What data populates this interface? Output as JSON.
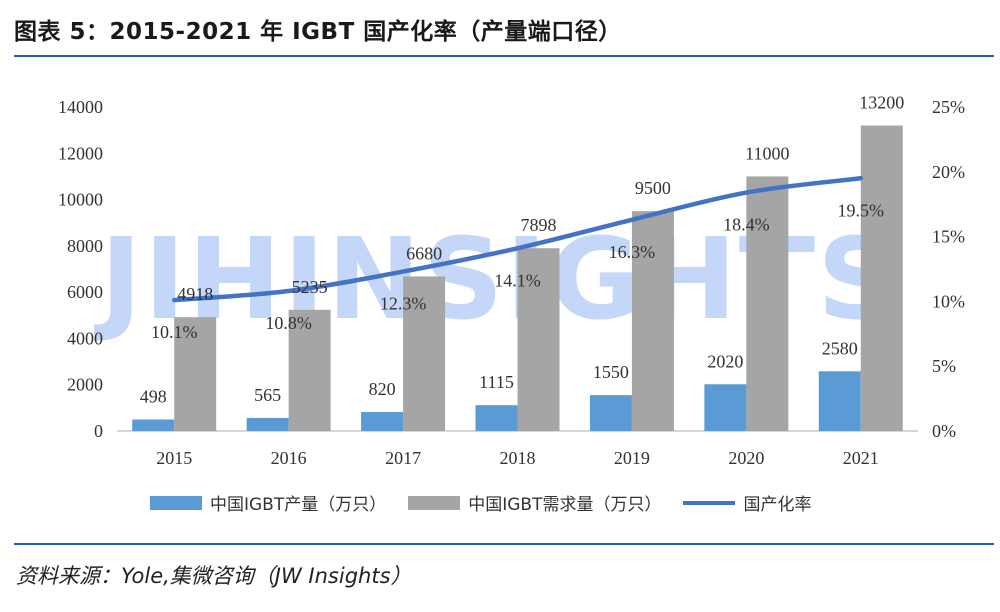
{
  "title": "图表 5：2015-2021 年 IGBT 国产化率（产量端口径）",
  "source": "资料来源：Yole,集微咨询（JW Insights）",
  "watermark": "JIHINSIGHTS",
  "colors": {
    "production": "#5b9bd5",
    "demand": "#a5a5a5",
    "rate": "#4472c4",
    "rule": "#1f5fbf"
  },
  "chart_data": {
    "type": "bar",
    "categories": [
      "2015",
      "2016",
      "2017",
      "2018",
      "2019",
      "2020",
      "2021"
    ],
    "series": [
      {
        "name": "中国IGBT产量（万只）",
        "type": "bar",
        "axis": "left",
        "values": [
          498,
          565,
          820,
          1115,
          1550,
          2020,
          2580
        ]
      },
      {
        "name": "中国IGBT需求量（万只）",
        "type": "bar",
        "axis": "left",
        "values": [
          4918,
          5235,
          6680,
          7898,
          9500,
          11000,
          13200
        ]
      },
      {
        "name": "国产化率",
        "type": "line",
        "axis": "right",
        "values": [
          10.1,
          10.8,
          12.3,
          14.1,
          16.3,
          18.4,
          19.5
        ],
        "labels": [
          "10.1%",
          "10.8%",
          "12.3%",
          "14.1%",
          "16.3%",
          "18.4%",
          "19.5%"
        ]
      }
    ],
    "y_left": {
      "min": 0,
      "max": 14000,
      "ticks": [
        "0",
        "2000",
        "4000",
        "6000",
        "8000",
        "10000",
        "12000",
        "14000"
      ]
    },
    "y_right": {
      "min": 0,
      "max": 25,
      "ticks": [
        "0%",
        "5%",
        "10%",
        "15%",
        "20%",
        "25%"
      ]
    },
    "grid": false,
    "legend": "bottom"
  }
}
